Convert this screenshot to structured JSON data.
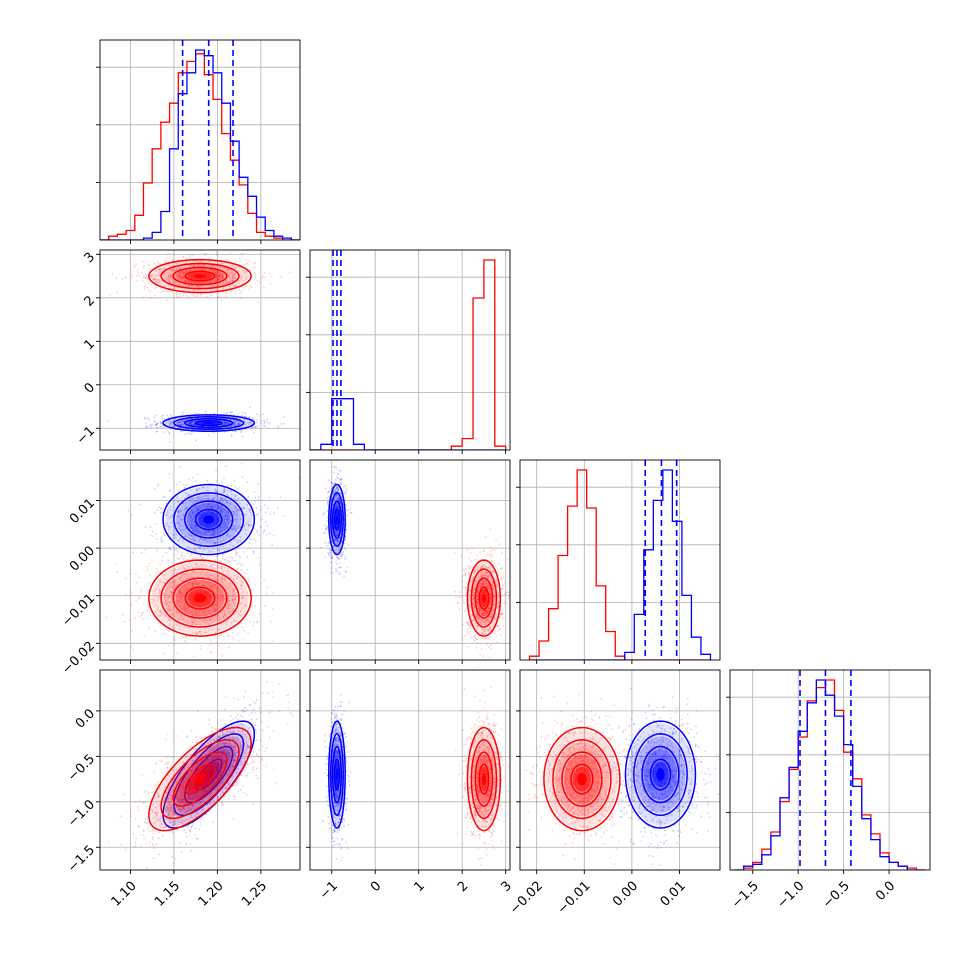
{
  "chart_data": {
    "type": "corner",
    "grid": true,
    "colors": {
      "blue": "#0000ff",
      "red": "#ff0000"
    },
    "parameters": [
      {
        "range": [
          1.065,
          1.295
        ],
        "ticks": [
          1.1,
          1.15,
          1.2,
          1.25
        ],
        "tick_labels": [
          "1.10",
          "1.15",
          "1.20",
          "1.25"
        ]
      },
      {
        "range": [
          -1.5,
          3.1
        ],
        "ticks": [
          -1,
          0,
          1,
          2,
          3
        ],
        "tick_labels": [
          "−1",
          "0",
          "1",
          "2",
          "3"
        ]
      },
      {
        "range": [
          -0.0235,
          0.0185
        ],
        "ticks": [
          -0.02,
          -0.01,
          0.0,
          0.01
        ],
        "tick_labels": [
          "−0.02",
          "−0.01",
          "0.00",
          "0.01"
        ]
      },
      {
        "range": [
          -1.75,
          0.45
        ],
        "ticks": [
          -1.5,
          -1.0,
          -0.5,
          0.0
        ],
        "tick_labels": [
          "−1.5",
          "−1.0",
          "−0.5",
          "0.0"
        ]
      }
    ],
    "series": [
      {
        "color": "blue",
        "mean": [
          1.19,
          -0.88,
          0.006,
          -0.7
        ],
        "sd": [
          0.025,
          0.09,
          0.0035,
          0.28
        ],
        "rho": [
          [
            0,
            3,
            0.75
          ]
        ]
      },
      {
        "color": "red",
        "mean": [
          1.18,
          2.5,
          -0.0105,
          -0.75
        ],
        "sd": [
          0.028,
          0.18,
          0.0038,
          0.27
        ],
        "rho": [
          [
            0,
            3,
            0.7
          ]
        ]
      }
    ],
    "blue_quantile_lines": [
      [
        1.16,
        1.19,
        1.218
      ],
      [
        -0.97,
        -0.88,
        -0.79
      ],
      [
        0.0028,
        0.0062,
        0.0094
      ],
      [
        -0.98,
        -0.7,
        -0.42
      ]
    ],
    "diagonal_hist": [
      {
        "edges": [
          1.065,
          1.075,
          1.085,
          1.095,
          1.105,
          1.115,
          1.125,
          1.135,
          1.145,
          1.155,
          1.165,
          1.175,
          1.185,
          1.195,
          1.205,
          1.215,
          1.225,
          1.235,
          1.245,
          1.255,
          1.265,
          1.275,
          1.285,
          1.295
        ],
        "blue": [
          0,
          0,
          0,
          0,
          0,
          0.01,
          0.04,
          0.15,
          0.48,
          0.77,
          0.88,
          1.0,
          0.97,
          0.88,
          0.72,
          0.52,
          0.33,
          0.23,
          0.12,
          0.05,
          0.02,
          0.01,
          0
        ],
        "red": [
          0,
          0.02,
          0.03,
          0.05,
          0.13,
          0.3,
          0.48,
          0.62,
          0.72,
          0.88,
          0.94,
          0.98,
          0.87,
          0.74,
          0.56,
          0.42,
          0.29,
          0.14,
          0.04,
          0.02,
          0.01,
          0,
          0
        ]
      },
      {
        "edges": [
          -1.5,
          -1.25,
          -1.0,
          -0.75,
          -0.5,
          -0.25,
          0.0,
          0.25,
          0.5,
          0.75,
          1.0,
          1.25,
          1.5,
          1.75,
          2.0,
          2.25,
          2.5,
          2.75,
          3.0
        ],
        "blue": [
          0,
          0.03,
          0.27,
          0.27,
          0.03,
          0,
          0,
          0,
          0,
          0,
          0,
          0,
          0,
          0,
          0,
          0,
          0,
          0
        ],
        "red": [
          0,
          0,
          0,
          0,
          0,
          0,
          0,
          0,
          0,
          0,
          0,
          0,
          0,
          0.02,
          0.06,
          0.8,
          1.0,
          0.02
        ]
      },
      {
        "edges": [
          -0.0215,
          -0.0195,
          -0.0175,
          -0.0155,
          -0.0135,
          -0.0115,
          -0.0095,
          -0.0075,
          -0.0055,
          -0.0035,
          -0.0015,
          0.0005,
          0.0025,
          0.0045,
          0.0065,
          0.0085,
          0.0105,
          0.0125,
          0.0145,
          0.0165
        ],
        "blue": [
          0,
          0,
          0,
          0,
          0,
          0,
          0,
          0,
          0,
          0,
          0.04,
          0.24,
          0.58,
          0.84,
          1.0,
          0.73,
          0.34,
          0.12,
          0.03
        ],
        "red": [
          0.02,
          0.1,
          0.27,
          0.55,
          0.81,
          1.0,
          0.8,
          0.39,
          0.15,
          0.02,
          0,
          0,
          0,
          0,
          0,
          0,
          0,
          0,
          0
        ]
      },
      {
        "edges": [
          -1.7,
          -1.6,
          -1.5,
          -1.4,
          -1.3,
          -1.2,
          -1.1,
          -1.0,
          -0.9,
          -0.8,
          -0.7,
          -0.6,
          -0.5,
          -0.4,
          -0.3,
          -0.2,
          -0.1,
          0.0,
          0.1,
          0.2,
          0.3,
          0.4
        ],
        "blue": [
          0,
          0.02,
          0.03,
          0.08,
          0.18,
          0.38,
          0.54,
          0.73,
          0.88,
          1.0,
          0.92,
          0.81,
          0.66,
          0.44,
          0.27,
          0.16,
          0.07,
          0.04,
          0.02,
          0,
          0
        ],
        "red": [
          0,
          0.01,
          0.04,
          0.11,
          0.2,
          0.36,
          0.53,
          0.7,
          0.89,
          0.96,
          1.0,
          0.84,
          0.62,
          0.48,
          0.29,
          0.19,
          0.09,
          0.04,
          0.02,
          0.01,
          0
        ]
      }
    ]
  }
}
